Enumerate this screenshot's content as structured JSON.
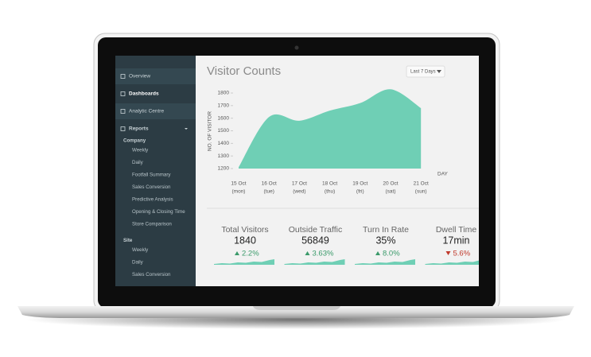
{
  "sidebar": {
    "nav": [
      "Overview",
      "Dashboards",
      "Analytic Centre",
      "Reports"
    ],
    "groups": [
      {
        "title": "Company",
        "links": [
          "Weekly",
          "Daily",
          "Footfall Summary",
          "Sales Conversion",
          "Predictive Analysis",
          "Opening & Closing Time",
          "Store Comparison"
        ]
      },
      {
        "title": "Site",
        "links": [
          "Weekly",
          "Daily",
          "Sales Conversion"
        ]
      }
    ]
  },
  "header": {
    "title": "Visitor Counts",
    "range_selector": "Last 7 Days"
  },
  "chart_data": {
    "type": "area",
    "y_label": "NO. OF VISITOR",
    "x_label": "DAY",
    "categories": [
      "15 Oct",
      "16 Oct",
      "17 Oct",
      "18 Oct",
      "19 Oct",
      "20 Oct",
      "21 Oct"
    ],
    "category_days": [
      "(mon)",
      "(tue)",
      "(wed)",
      "(thu)",
      "(fri)",
      "(sat)",
      "(sun)"
    ],
    "values": [
      1210,
      1610,
      1580,
      1660,
      1720,
      1830,
      1680
    ],
    "color": "#6fcfb5",
    "ylim": [
      1200,
      1800
    ],
    "yticks": [
      1200,
      1300,
      1400,
      1500,
      1600,
      1700,
      1800
    ]
  },
  "kpis": [
    {
      "label": "Total Visitors",
      "value": "1840",
      "change": "2.2%",
      "trend": "up"
    },
    {
      "label": "Outside Traffic",
      "value": "56849",
      "change": "3.63%",
      "trend": "up"
    },
    {
      "label": "Turn In Rate",
      "value": "35%",
      "change": "8.0%",
      "trend": "up"
    },
    {
      "label": "Dwell Time",
      "value": "17min",
      "change": "5.6%",
      "trend": "down"
    }
  ]
}
